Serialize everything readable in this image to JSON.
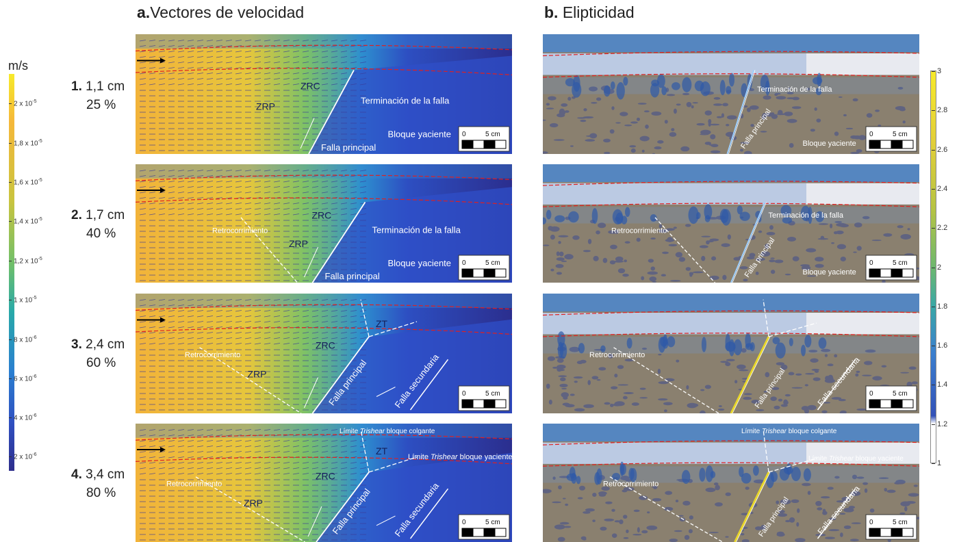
{
  "titles": {
    "a_letter": "a.",
    "a_text": "Vectores de velocidad",
    "b_letter": "b.",
    "b_text": "Elipticidad"
  },
  "left_colorbar": {
    "unit": "m/s",
    "ticks": [
      {
        "mantissa": "2 x 10",
        "exp": "-5"
      },
      {
        "mantissa": "1,8 x 10",
        "exp": "-5"
      },
      {
        "mantissa": "1,6 x 10",
        "exp": "-5"
      },
      {
        "mantissa": "1,4 x 10",
        "exp": "-5"
      },
      {
        "mantissa": "1,2 x 10",
        "exp": "-5"
      },
      {
        "mantissa": "1 x 10",
        "exp": "-5"
      },
      {
        "mantissa": "8 x 10",
        "exp": "-6"
      },
      {
        "mantissa": "6 x 10",
        "exp": "-6"
      },
      {
        "mantissa": "4 x 10",
        "exp": "-6"
      },
      {
        "mantissa": "2 x 10",
        "exp": "-6"
      }
    ],
    "colors": [
      "#f7ea2a",
      "#f5b83a",
      "#c9c43f",
      "#6fbf6a",
      "#28a9a9",
      "#2a7fd0",
      "#2f4fc0",
      "#2e2e8c"
    ]
  },
  "right_colorbar": {
    "ticks": [
      "3",
      "2.8",
      "2.6",
      "2.4",
      "2.2",
      "2",
      "1.8",
      "1.6",
      "1.4",
      "1.2",
      "1"
    ],
    "colors": [
      "#f7ea2a",
      "#e2cf3a",
      "#b7c443",
      "#6eb86e",
      "#3aa8a6",
      "#3b7fce",
      "#3352b8",
      "#ffffff"
    ]
  },
  "scale_bar": {
    "zero": "0",
    "five": "5 cm"
  },
  "rows": [
    {
      "num": "1.",
      "disp": "1,1 cm",
      "pct": "25 %",
      "a": {
        "ZRC": "ZRC",
        "ZRP": "ZRP",
        "term": "Terminación de la falla",
        "yac": "Bloque yaciente",
        "falla": "Falla principal"
      },
      "b": {
        "term": "Terminación de la falla",
        "falla": "Falla principal",
        "yac": "Bloque yaciente"
      }
    },
    {
      "num": "2.",
      "disp": "1,7 cm",
      "pct": "40 %",
      "a": {
        "ZRC": "ZRC",
        "ZRP": "ZRP",
        "retro": "Retrocorrimiento",
        "term": "Terminación de la falla",
        "yac": "Bloque yaciente",
        "falla": "Falla principal"
      },
      "b": {
        "retro": "Retrocorrimiento",
        "term": "Terminación de la falla",
        "falla": "Falla principal",
        "yac": "Bloque yaciente"
      }
    },
    {
      "num": "3.",
      "disp": "2,4 cm",
      "pct": "60 %",
      "a": {
        "ZT": "ZT",
        "ZRC": "ZRC",
        "ZRP": "ZRP",
        "retro": "Retrocorrimiento",
        "falla": "Falla principal",
        "sec": "Falla secundaria"
      },
      "b": {
        "retro": "Retrocorrimiento",
        "falla": "Falla principal",
        "sec": "Falla secundaria"
      }
    },
    {
      "num": "4.",
      "disp": "3,4 cm",
      "pct": "80 %",
      "a": {
        "ZT": "ZT",
        "ZRC": "ZRC",
        "ZRP": "ZRP",
        "retro": "Retrocorrimiento",
        "falla": "Falla principal",
        "sec": "Falla secundaria",
        "lim": "Límite ",
        "trishear": "Trishear",
        "colgante": " bloque colgante",
        "yaciente": " bloque yaciente"
      },
      "b": {
        "retro": "Retrocorrimiento",
        "falla": "Falla principal",
        "sec": "Falla secundaria",
        "lim": "Límite ",
        "trishear": "Trishear",
        "colgante": " bloque colgante",
        "yaciente": " bloque yaciente"
      }
    }
  ]
}
